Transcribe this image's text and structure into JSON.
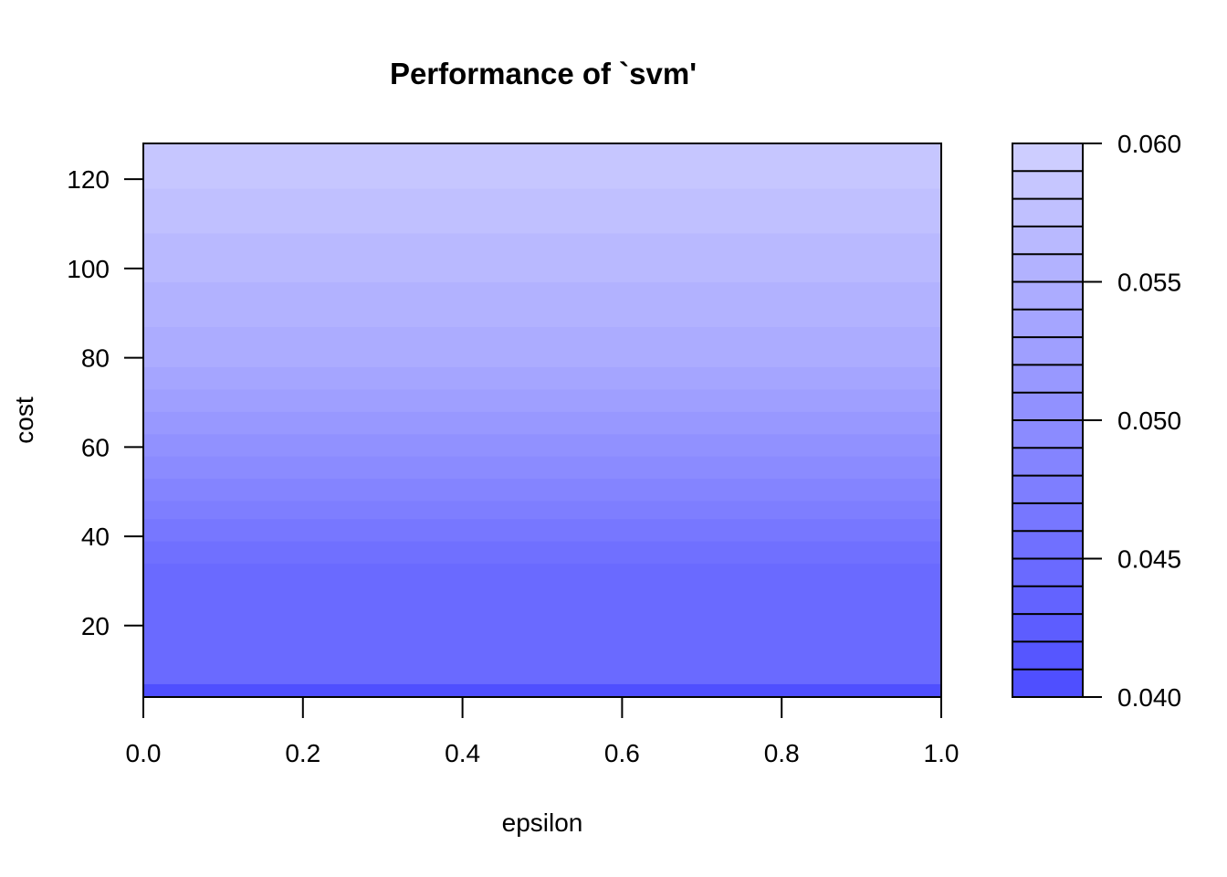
{
  "chart_data": {
    "type": "heatmap",
    "title": "Performance of `svm'",
    "xlabel": "epsilon",
    "ylabel": "cost",
    "xlim": [
      0,
      1
    ],
    "ylim": [
      4,
      128
    ],
    "x_ticks": [
      0.0,
      0.2,
      0.4,
      0.6,
      0.8,
      1.0
    ],
    "x_tick_labels": [
      "0.0",
      "0.2",
      "0.4",
      "0.6",
      "0.8",
      "1.0"
    ],
    "y_ticks": [
      20,
      40,
      60,
      80,
      100,
      120
    ],
    "y_tick_labels": [
      "20",
      "40",
      "60",
      "80",
      "100",
      "120"
    ],
    "grid": false,
    "legend": {
      "placement": "right",
      "range": [
        0.04,
        0.06
      ],
      "levels": 20,
      "ticks": [
        0.04,
        0.045,
        0.05,
        0.055,
        0.06
      ],
      "tick_labels": [
        "0.040",
        "0.045",
        "0.050",
        "0.055",
        "0.060"
      ],
      "color_low": "#4c4cff",
      "color_high": "#d0d0ff"
    },
    "bands": [
      {
        "cost_from": 4,
        "cost_to": 7,
        "performance": 0.0405
      },
      {
        "cost_from": 7,
        "cost_to": 34,
        "performance": 0.0445
      },
      {
        "cost_from": 34,
        "cost_to": 39,
        "performance": 0.0455
      },
      {
        "cost_from": 39,
        "cost_to": 44,
        "performance": 0.0465
      },
      {
        "cost_from": 44,
        "cost_to": 48,
        "performance": 0.0475
      },
      {
        "cost_from": 48,
        "cost_to": 53,
        "performance": 0.0485
      },
      {
        "cost_from": 53,
        "cost_to": 58,
        "performance": 0.0495
      },
      {
        "cost_from": 58,
        "cost_to": 63,
        "performance": 0.0505
      },
      {
        "cost_from": 63,
        "cost_to": 68,
        "performance": 0.0515
      },
      {
        "cost_from": 68,
        "cost_to": 73,
        "performance": 0.0525
      },
      {
        "cost_from": 73,
        "cost_to": 78,
        "performance": 0.0535
      },
      {
        "cost_from": 78,
        "cost_to": 87,
        "performance": 0.0545
      },
      {
        "cost_from": 87,
        "cost_to": 97,
        "performance": 0.0555
      },
      {
        "cost_from": 97,
        "cost_to": 108,
        "performance": 0.0565
      },
      {
        "cost_from": 108,
        "cost_to": 118,
        "performance": 0.0575
      },
      {
        "cost_from": 118,
        "cost_to": 128,
        "performance": 0.0585
      }
    ]
  }
}
